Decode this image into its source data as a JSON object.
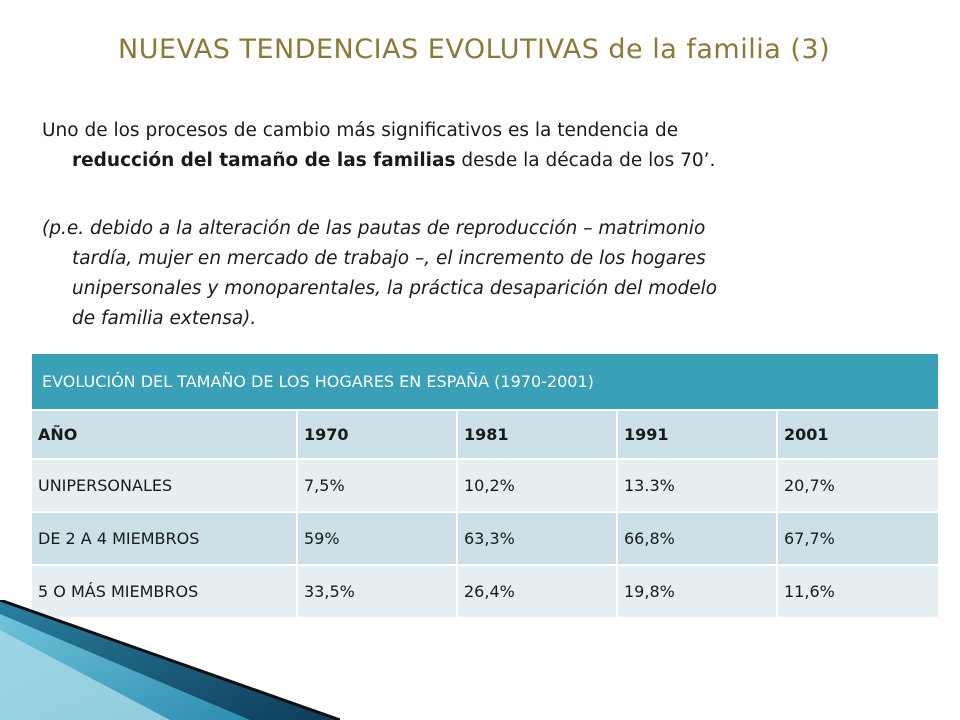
{
  "title": "NUEVAS TENDENCIAS EVOLUTIVAS de la familia (3)",
  "paragraph1": {
    "line1": "Uno de los procesos de cambio más significativos es la tendencia de",
    "line2_bold": "reducción del tamaño de las familias",
    "line2_rest": " desde la década de los 70’."
  },
  "paragraph2": {
    "line1": "(p.e. debido a la alteración de las pautas de reproducción – matrimonio",
    "line2": "tardía, mujer en mercado de trabajo –, el incremento de los hogares",
    "line3": "unipersonales y monoparentales, la práctica desaparición del modelo",
    "line4": "de familia extensa)."
  },
  "table": {
    "caption": "EVOLUCIÓN DEL TAMAÑO DE LOS HOGARES EN ESPAÑA (1970-2001)",
    "header": [
      "AÑO",
      "1970",
      "1981",
      "1991",
      "2001"
    ],
    "rows": [
      [
        "UNIPERSONALES",
        "7,5%",
        "10,2%",
        "13.3%",
        "20,7%"
      ],
      [
        "DE 2 A 4 MIEMBROS",
        "59%",
        "63,3%",
        "66,8%",
        "67,7%"
      ],
      [
        "5 O MÁS MIEMBROS",
        "33,5%",
        "26,4%",
        "19,8%",
        "11,6%"
      ]
    ]
  },
  "colors": {
    "title": "#8a7a3a",
    "table_header": "#3aa0b8",
    "row_light": "#e6eff2",
    "row_dark": "#cbe1e7"
  }
}
